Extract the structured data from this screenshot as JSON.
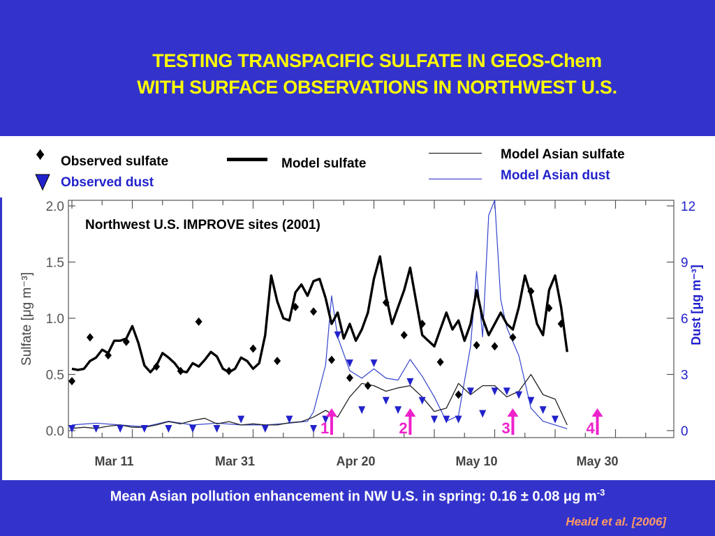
{
  "header": {
    "title_line1": "TESTING TRANSPACIFIC SULFATE IN GEOS-Chem",
    "title_line2": "WITH SURFACE OBSERVATIONS IN NORTHWEST U.S."
  },
  "legend": {
    "observed_sulfate": "Observed sulfate",
    "observed_dust": "Observed dust",
    "model_sulfate": "Model sulfate",
    "model_asian_sulfate": "Model Asian sulfate",
    "model_asian_dust": "Model Asian dust",
    "diamond_symbol": "♦"
  },
  "footer": {
    "text": "Mean Asian pollution enhancement in NW U.S. in spring: 0.16 ± 0.08 ",
    "mu": "μ",
    "unit": "g m",
    "exponent": "-3",
    "credit": "Heald et al. [2006]"
  },
  "colors": {
    "background": "#3333cc",
    "title": "#ffff00",
    "dust": "#2222cc",
    "arrow": "#ee22cc",
    "credit": "#ff9966"
  },
  "chart_data": {
    "type": "line",
    "annotation": "Northwest U.S. IMPROVE sites (2001)",
    "ylabel": "Sulfate [μg m⁻³]",
    "y2label": "Dust [μg m⁻³]",
    "ylim": [
      0,
      2.0
    ],
    "y2lim": [
      0,
      12
    ],
    "xlim": [
      0,
      82
    ],
    "yticks": [
      "0.0",
      "0.5",
      "1.0",
      "1.5",
      "2.0"
    ],
    "y2ticks": [
      "0",
      "3",
      "6",
      "9",
      "12"
    ],
    "x_tick_labels": [
      "Mar 11",
      "Mar 31",
      "Apr 20",
      "May 10",
      "May 30"
    ],
    "x_tick_days": [
      10,
      30,
      50,
      70,
      90
    ],
    "x_axis_note": "x values are days since Mar 1, 2001",
    "model_sulfate": {
      "x": [
        0,
        1,
        2,
        3,
        4,
        5,
        6,
        7,
        8,
        9,
        10,
        11,
        12,
        13,
        14,
        15,
        16,
        17,
        18,
        19,
        20,
        21,
        22,
        23,
        24,
        25,
        26,
        27,
        28,
        29,
        30,
        31,
        32,
        33,
        34,
        35,
        36,
        37,
        38,
        39,
        40,
        41,
        42,
        43,
        44,
        45,
        46,
        47,
        48,
        49,
        50,
        51,
        52,
        53,
        54,
        55,
        56,
        57,
        58,
        59,
        60,
        61,
        62,
        63,
        64,
        65,
        66,
        67,
        68,
        69,
        70,
        71,
        72,
        73,
        74,
        75,
        76,
        77,
        78,
        79,
        80,
        81,
        82
      ],
      "y": [
        0.55,
        0.54,
        0.55,
        0.62,
        0.65,
        0.72,
        0.69,
        0.8,
        0.8,
        0.82,
        0.93,
        0.78,
        0.58,
        0.52,
        0.58,
        0.69,
        0.65,
        0.6,
        0.53,
        0.52,
        0.6,
        0.57,
        0.63,
        0.7,
        0.66,
        0.55,
        0.52,
        0.55,
        0.65,
        0.62,
        0.55,
        0.6,
        0.85,
        1.38,
        1.15,
        1.0,
        0.98,
        1.23,
        1.3,
        1.2,
        1.33,
        1.35,
        1.18,
        0.95,
        1.05,
        0.82,
        0.95,
        0.8,
        0.9,
        1.05,
        1.35,
        1.55,
        1.2,
        0.95,
        1.1,
        1.25,
        1.45,
        1.15,
        0.85,
        0.8,
        0.75,
        0.9,
        1.05,
        0.9,
        0.98,
        0.8,
        0.95,
        1.25,
        1.0,
        0.85,
        0.95,
        1.05,
        0.95,
        0.9,
        1.1,
        1.38,
        1.2,
        0.95,
        0.85,
        1.25,
        1.38,
        1.1,
        0.7
      ]
    },
    "model_asian_sulfate": {
      "x": [
        0,
        2,
        4,
        6,
        8,
        10,
        12,
        14,
        16,
        18,
        20,
        22,
        24,
        26,
        28,
        30,
        32,
        34,
        36,
        38,
        40,
        42,
        44,
        46,
        48,
        50,
        52,
        54,
        56,
        58,
        60,
        62,
        64,
        66,
        68,
        70,
        72,
        74,
        76,
        78,
        80,
        82
      ],
      "y": [
        0.02,
        0.03,
        0.02,
        0.04,
        0.05,
        0.03,
        0.03,
        0.05,
        0.08,
        0.06,
        0.09,
        0.11,
        0.06,
        0.08,
        0.05,
        0.06,
        0.05,
        0.05,
        0.07,
        0.08,
        0.12,
        0.18,
        0.12,
        0.3,
        0.42,
        0.4,
        0.35,
        0.38,
        0.4,
        0.3,
        0.17,
        0.2,
        0.42,
        0.32,
        0.4,
        0.4,
        0.3,
        0.35,
        0.5,
        0.32,
        0.28,
        0.05
      ]
    },
    "model_asian_dust": {
      "x": [
        0,
        4,
        8,
        12,
        16,
        20,
        24,
        28,
        32,
        36,
        39,
        40,
        42,
        43,
        44,
        46,
        48,
        50,
        52,
        54,
        56,
        58,
        60,
        62,
        64,
        66,
        67,
        68,
        69,
        70,
        71,
        72,
        74,
        76,
        78,
        80,
        82
      ],
      "y": [
        0.3,
        0.4,
        0.3,
        0.2,
        0.5,
        0.3,
        0.4,
        0.3,
        0.3,
        0.4,
        0.5,
        1.0,
        3.5,
        7.2,
        5.0,
        3.2,
        2.8,
        3.3,
        2.8,
        2.7,
        3.8,
        2.9,
        1.8,
        0.5,
        0.8,
        4.5,
        8.5,
        5.0,
        11.5,
        12.3,
        7.0,
        5.5,
        4.0,
        1.2,
        0.5,
        0.3,
        0.1
      ]
    },
    "observed_sulfate": {
      "x": [
        0,
        3,
        6,
        9,
        14,
        18,
        21,
        26,
        30,
        34,
        37,
        40,
        43,
        46,
        49,
        52,
        55,
        58,
        61,
        64,
        67,
        70,
        73,
        76,
        79,
        81
      ],
      "y": [
        0.44,
        0.83,
        0.67,
        0.79,
        0.57,
        0.53,
        0.97,
        0.53,
        0.73,
        0.62,
        1.1,
        1.06,
        0.63,
        0.47,
        0.4,
        1.14,
        0.85,
        0.95,
        0.61,
        0.32,
        0.76,
        0.75,
        0.83,
        1.24,
        1.09,
        0.95
      ]
    },
    "observed_dust": {
      "x": [
        0,
        4,
        8,
        12,
        16,
        20,
        24,
        28,
        32,
        36,
        40,
        42,
        44,
        46,
        48,
        50,
        52,
        54,
        56,
        58,
        60,
        62,
        64,
        66,
        68,
        70,
        72,
        74,
        76,
        78,
        80
      ],
      "y": [
        0.0,
        0.0,
        0.0,
        0.0,
        0.0,
        0.0,
        0.0,
        0.5,
        0.0,
        0.5,
        0.0,
        0.5,
        5.0,
        3.5,
        1.0,
        3.5,
        1.5,
        1.0,
        2.5,
        1.5,
        0.5,
        0.5,
        0.5,
        2.0,
        0.8,
        2.0,
        2.0,
        1.8,
        1.5,
        1.0,
        0.5
      ]
    },
    "event_markers": {
      "labels": [
        "1",
        "2",
        "3",
        "4"
      ],
      "days": [
        44,
        57,
        74,
        88
      ]
    }
  }
}
